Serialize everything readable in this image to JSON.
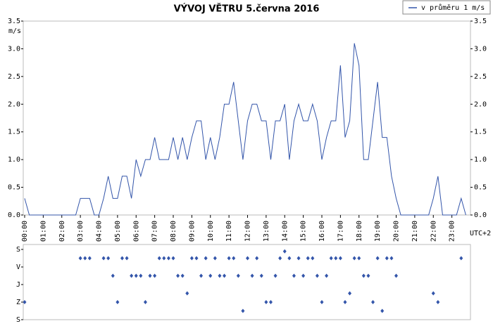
{
  "chart_data": [
    {
      "type": "line",
      "title": "VÝVOJ VĚTRU  5.června 2016",
      "ylabel": "m/s",
      "x_unit_label": "UTC+2",
      "legend": "top-right",
      "xlim": [
        0,
        24
      ],
      "xticks": [
        {
          "value": 0,
          "label": "00:00"
        },
        {
          "value": 1,
          "label": "01:00"
        },
        {
          "value": 2,
          "label": "02:00"
        },
        {
          "value": 3,
          "label": "03:00"
        },
        {
          "value": 4,
          "label": "04:00"
        },
        {
          "value": 5,
          "label": "05:00"
        },
        {
          "value": 6,
          "label": "06:00"
        },
        {
          "value": 7,
          "label": "07:00"
        },
        {
          "value": 8,
          "label": "08:00"
        },
        {
          "value": 9,
          "label": "09:00"
        },
        {
          "value": 10,
          "label": "10:00"
        },
        {
          "value": 11,
          "label": "11:00"
        },
        {
          "value": 12,
          "label": "12:00"
        },
        {
          "value": 13,
          "label": "13:00"
        },
        {
          "value": 14,
          "label": "14:00"
        },
        {
          "value": 15,
          "label": "15:00"
        },
        {
          "value": 16,
          "label": "16:00"
        },
        {
          "value": 17,
          "label": "17:00"
        },
        {
          "value": 18,
          "label": "18:00"
        },
        {
          "value": 19,
          "label": "19:00"
        },
        {
          "value": 20,
          "label": "20:00"
        },
        {
          "value": 21,
          "label": "21:00"
        },
        {
          "value": 22,
          "label": "22:00"
        },
        {
          "value": 23,
          "label": "23:00"
        }
      ],
      "ylim": [
        0,
        3.5
      ],
      "yticks": [
        {
          "value": 0,
          "label": "0.0"
        },
        {
          "value": 0.5,
          "label": "0.5"
        },
        {
          "value": 1,
          "label": "1.0"
        },
        {
          "value": 1.5,
          "label": "1.5"
        },
        {
          "value": 2,
          "label": "2.0"
        },
        {
          "value": 2.5,
          "label": "2.5"
        },
        {
          "value": 3,
          "label": "3.0"
        },
        {
          "value": 3.5,
          "label": "3.5"
        }
      ],
      "x": [
        0,
        0.25,
        0.5,
        0.75,
        1,
        1.25,
        1.5,
        1.75,
        2,
        2.25,
        2.5,
        2.75,
        3,
        3.25,
        3.5,
        3.75,
        4,
        4.25,
        4.5,
        4.75,
        5,
        5.25,
        5.5,
        5.75,
        6,
        6.25,
        6.5,
        6.75,
        7,
        7.25,
        7.5,
        7.75,
        8,
        8.25,
        8.5,
        8.75,
        9,
        9.25,
        9.5,
        9.75,
        10,
        10.25,
        10.5,
        10.75,
        11,
        11.25,
        11.5,
        11.75,
        12,
        12.25,
        12.5,
        12.75,
        13,
        13.25,
        13.5,
        13.75,
        14,
        14.25,
        14.5,
        14.75,
        15,
        15.25,
        15.5,
        15.75,
        16,
        16.25,
        16.5,
        16.75,
        17,
        17.25,
        17.5,
        17.75,
        18,
        18.25,
        18.5,
        18.75,
        19,
        19.25,
        19.5,
        19.75,
        20,
        20.25,
        20.5,
        20.75,
        21,
        21.25,
        21.5,
        21.75,
        22,
        22.25,
        22.5,
        22.75,
        23,
        23.25,
        23.5,
        23.75
      ],
      "series": [
        {
          "name": "v průměru 1 m/s",
          "color": "#3355aa",
          "values": [
            0.3,
            0,
            0,
            0,
            0,
            0,
            0,
            0,
            0,
            0,
            0,
            0,
            0.3,
            0.3,
            0.3,
            0,
            0,
            0.3,
            0.7,
            0.3,
            0.3,
            0.7,
            0.7,
            0.3,
            1.0,
            0.7,
            1.0,
            1.0,
            1.4,
            1.0,
            1.0,
            1.0,
            1.4,
            1.0,
            1.4,
            1.0,
            1.4,
            1.7,
            1.7,
            1.0,
            1.4,
            1.0,
            1.4,
            2.0,
            2.0,
            2.4,
            1.7,
            1.0,
            1.7,
            2.0,
            2.0,
            1.7,
            1.7,
            1.0,
            1.7,
            1.7,
            2.0,
            1.0,
            1.7,
            2.0,
            1.7,
            1.7,
            2.0,
            1.7,
            1.0,
            1.4,
            1.7,
            1.7,
            2.7,
            1.4,
            1.7,
            3.1,
            2.7,
            1.0,
            1.0,
            1.7,
            2.4,
            1.4,
            1.4,
            0.7,
            0.3,
            0,
            0,
            0,
            0,
            0,
            0,
            0,
            0.3,
            0.7,
            0,
            0,
            0,
            0,
            0.3,
            0
          ]
        }
      ]
    },
    {
      "type": "scatter",
      "xlim": [
        0,
        24
      ],
      "ylim": [
        0,
        360
      ],
      "yticks": [
        {
          "value": 0,
          "label": "S"
        },
        {
          "value": 90,
          "label": "V"
        },
        {
          "value": 180,
          "label": "J"
        },
        {
          "value": 270,
          "label": "Z"
        },
        {
          "value": 360,
          "label": "S"
        }
      ],
      "x": [
        0,
        0.25,
        0.5,
        0.75,
        1,
        1.25,
        1.5,
        1.75,
        2,
        2.25,
        2.5,
        2.75,
        3,
        3.25,
        3.5,
        3.75,
        4,
        4.25,
        4.5,
        4.75,
        5,
        5.25,
        5.5,
        5.75,
        6,
        6.25,
        6.5,
        6.75,
        7,
        7.25,
        7.5,
        7.75,
        8,
        8.25,
        8.5,
        8.75,
        9,
        9.25,
        9.5,
        9.75,
        10,
        10.25,
        10.5,
        10.75,
        11,
        11.25,
        11.5,
        11.75,
        12,
        12.25,
        12.5,
        12.75,
        13,
        13.25,
        13.5,
        13.75,
        14,
        14.25,
        14.5,
        14.75,
        15,
        15.25,
        15.5,
        15.75,
        16,
        16.25,
        16.5,
        16.75,
        17,
        17.25,
        17.5,
        17.75,
        18,
        18.25,
        18.5,
        18.75,
        19,
        19.25,
        19.5,
        19.75,
        20,
        20.25,
        20.5,
        20.75,
        21,
        21.25,
        21.5,
        21.75,
        22,
        22.25,
        22.5,
        22.75,
        23,
        23.25,
        23.5,
        23.75
      ],
      "series": [
        {
          "color": "#3355aa",
          "values": [
            270,
            null,
            null,
            null,
            null,
            null,
            null,
            null,
            null,
            null,
            null,
            null,
            45,
            45,
            45,
            null,
            null,
            45,
            45,
            135,
            270,
            45,
            45,
            135,
            135,
            135,
            270,
            135,
            135,
            45,
            45,
            45,
            45,
            135,
            135,
            225,
            45,
            45,
            135,
            45,
            135,
            45,
            135,
            135,
            45,
            45,
            135,
            315,
            45,
            135,
            45,
            135,
            270,
            270,
            135,
            45,
            10,
            45,
            135,
            45,
            135,
            45,
            45,
            135,
            270,
            135,
            45,
            45,
            45,
            270,
            225,
            45,
            45,
            135,
            135,
            270,
            45,
            315,
            45,
            45,
            135,
            null,
            null,
            null,
            null,
            null,
            null,
            null,
            225,
            270,
            null,
            null,
            null,
            null,
            45,
            null
          ]
        }
      ]
    }
  ]
}
